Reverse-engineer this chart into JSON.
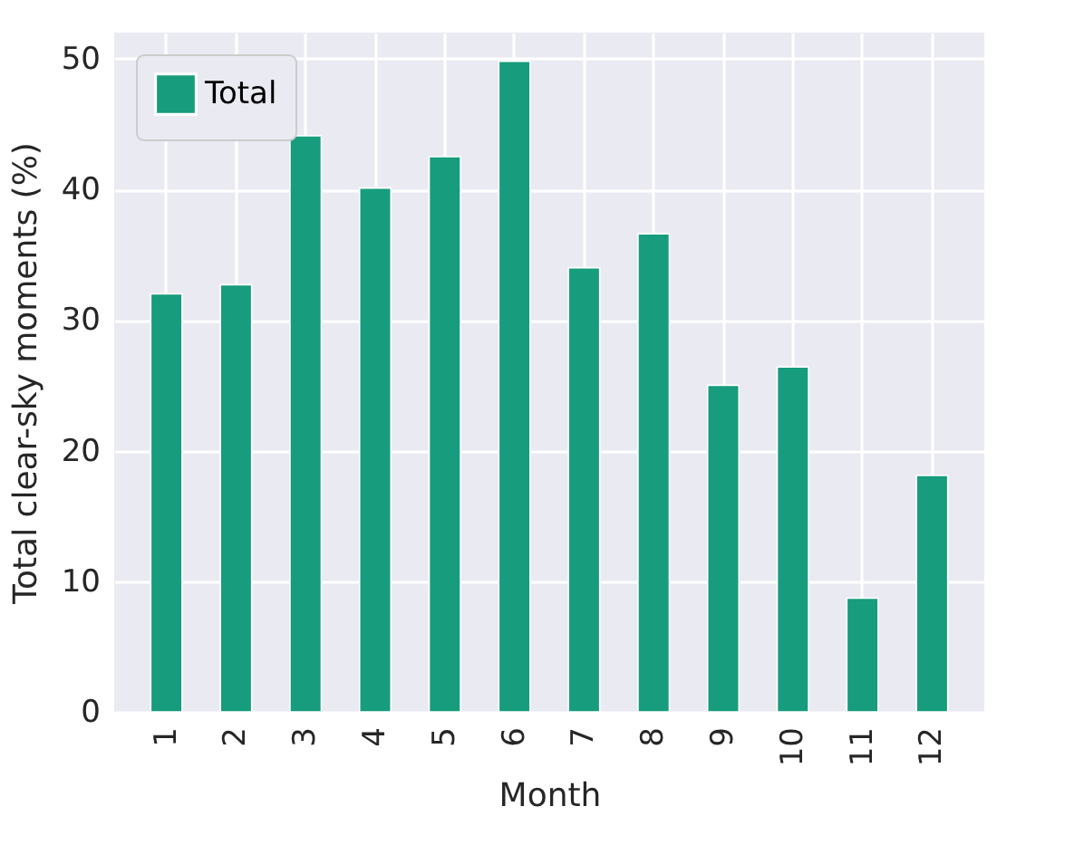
{
  "chart_data": {
    "type": "bar",
    "xlabel": "Month",
    "ylabel": "Total clear-sky moments (%)",
    "categories": [
      "1",
      "2",
      "3",
      "4",
      "5",
      "6",
      "7",
      "8",
      "9",
      "10",
      "11",
      "12"
    ],
    "series": [
      {
        "name": "Total",
        "color": "#179c7d",
        "values": [
          32.0,
          32.7,
          44.1,
          40.1,
          42.5,
          49.8,
          34.0,
          36.6,
          25.0,
          26.4,
          8.7,
          18.1
        ]
      }
    ],
    "ylim": [
      0,
      52
    ],
    "yticks": [
      0,
      10,
      20,
      30,
      40,
      50
    ],
    "grid": true,
    "legend": "top left"
  }
}
